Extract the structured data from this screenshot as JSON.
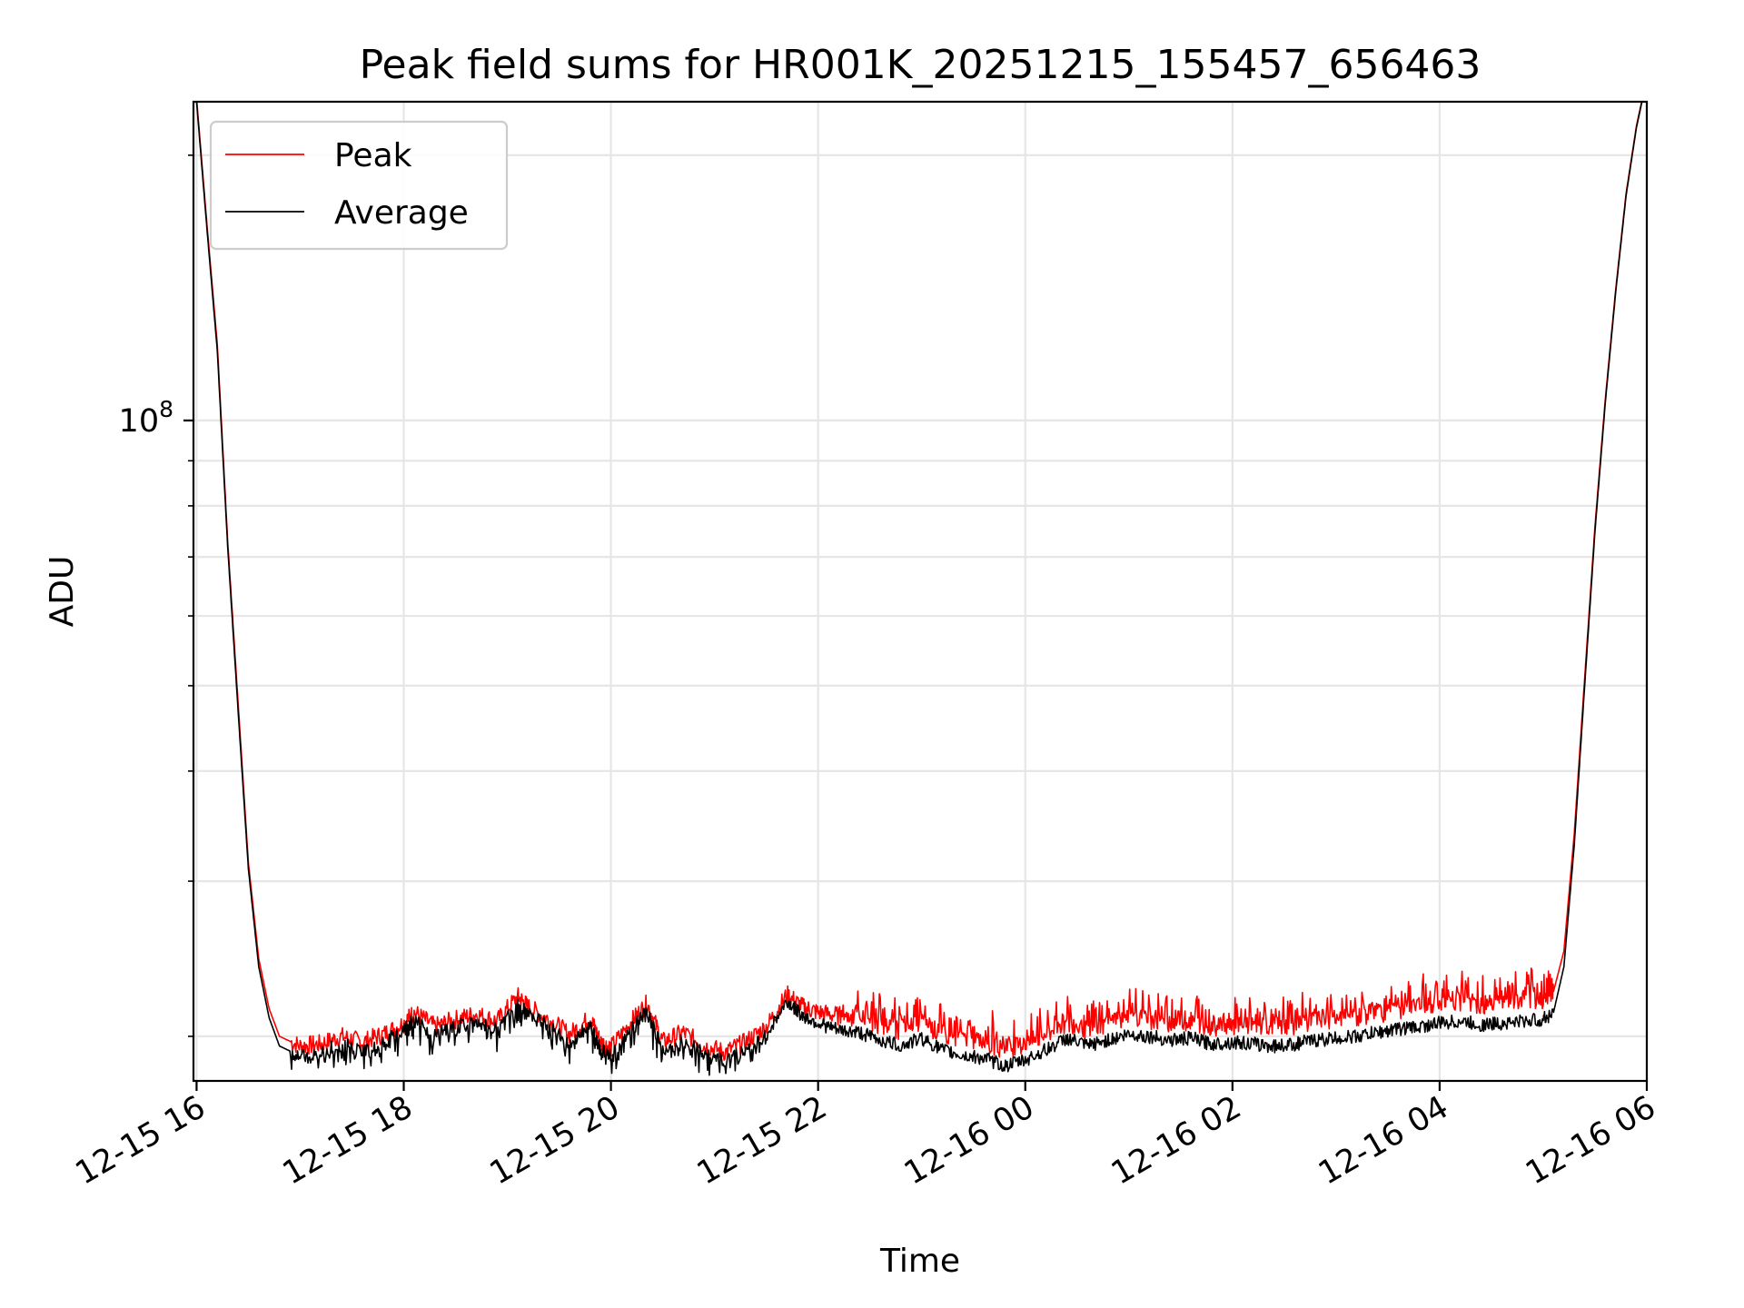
{
  "chart_data": {
    "type": "line",
    "title": "Peak field sums for HR001K_20251215_155457_656463",
    "xlabel": "Time",
    "ylabel": "ADU",
    "yscale": "log",
    "ylim": [
      17800000,
      230000000
    ],
    "xlim_hours": [
      -0.03,
      14.0
    ],
    "x_tick_labels": [
      "12-15 16",
      "12-15 18",
      "12-15 20",
      "12-15 22",
      "12-16 00",
      "12-16 02",
      "12-16 04",
      "12-16 06"
    ],
    "x_tick_hours": [
      0,
      2,
      4,
      6,
      8,
      10,
      12,
      14
    ],
    "y_major_tick": {
      "value": 100000000,
      "base": "10",
      "exponent": "8"
    },
    "y_minor_ticks": [
      20000000,
      30000000,
      40000000,
      50000000,
      60000000,
      70000000,
      80000000,
      90000000,
      200000000
    ],
    "grid": true,
    "legend": {
      "placement": "top-left",
      "entries": [
        {
          "label": "Peak",
          "color": "#ff0000"
        },
        {
          "label": "Average",
          "color": "#000000"
        }
      ]
    },
    "x_unit": "hours after 2025-12-15 16:00",
    "series": [
      {
        "name": "Average",
        "color": "#000000",
        "x": [
          0.0,
          0.1,
          0.2,
          0.3,
          0.4,
          0.5,
          0.6,
          0.7,
          0.8,
          1.0,
          1.2,
          1.4,
          1.6,
          1.8,
          2.0,
          2.1,
          2.3,
          2.5,
          2.7,
          2.9,
          3.1,
          3.2,
          3.4,
          3.6,
          3.8,
          3.9,
          4.0,
          4.2,
          4.35,
          4.5,
          4.7,
          4.9,
          5.1,
          5.3,
          5.5,
          5.7,
          5.85,
          6.0,
          6.2,
          6.4,
          6.6,
          6.8,
          7.0,
          7.2,
          7.4,
          7.6,
          7.8,
          8.0,
          8.2,
          8.4,
          8.6,
          8.8,
          9.0,
          9.2,
          9.4,
          9.6,
          9.8,
          10.0,
          10.2,
          10.4,
          10.6,
          10.8,
          11.0,
          11.2,
          11.4,
          11.6,
          11.8,
          12.0,
          12.2,
          12.4,
          12.6,
          12.8,
          13.0,
          13.1,
          13.2,
          13.3,
          13.4,
          13.5,
          13.6,
          13.7,
          13.8,
          13.9,
          13.97
        ],
        "y": [
          230000000,
          165000000,
          120000000,
          72000000,
          47000000,
          31000000,
          24000000,
          21000000,
          19500000,
          19000000,
          19200000,
          19600000,
          19300000,
          19700000,
          20300000,
          20900000,
          20100000,
          20500000,
          20800000,
          20400000,
          21800000,
          21200000,
          20500000,
          19700000,
          20600000,
          19300000,
          19000000,
          20400000,
          21400000,
          19300000,
          19800000,
          19100000,
          18800000,
          19300000,
          20100000,
          21900000,
          21100000,
          20700000,
          20300000,
          20200000,
          19800000,
          19500000,
          19900000,
          19300000,
          19000000,
          18900000,
          18500000,
          18800000,
          19300000,
          19900000,
          19500000,
          19800000,
          20100000,
          20000000,
          19800000,
          19900000,
          19600000,
          19700000,
          19600000,
          19500000,
          19600000,
          19800000,
          19900000,
          20000000,
          20200000,
          20400000,
          20500000,
          20700000,
          20800000,
          20600000,
          20700000,
          20800000,
          20900000,
          21300000,
          24000000,
          33000000,
          50000000,
          75000000,
          105000000,
          140000000,
          180000000,
          215000000,
          235000000
        ]
      },
      {
        "name": "Peak",
        "color": "#ff0000",
        "x": [
          0.0,
          0.1,
          0.2,
          0.3,
          0.4,
          0.5,
          0.6,
          0.7,
          0.8,
          1.0,
          1.2,
          1.4,
          1.6,
          1.8,
          2.0,
          2.1,
          2.3,
          2.5,
          2.7,
          2.9,
          3.1,
          3.2,
          3.4,
          3.6,
          3.8,
          3.9,
          4.0,
          4.2,
          4.35,
          4.5,
          4.7,
          4.9,
          5.1,
          5.3,
          5.5,
          5.7,
          5.85,
          6.0,
          6.2,
          6.4,
          6.6,
          6.8,
          7.0,
          7.2,
          7.4,
          7.6,
          7.8,
          8.0,
          8.2,
          8.4,
          8.6,
          8.8,
          9.0,
          9.2,
          9.4,
          9.6,
          9.8,
          10.0,
          10.2,
          10.4,
          10.6,
          10.8,
          11.0,
          11.2,
          11.4,
          11.6,
          11.8,
          12.0,
          12.2,
          12.4,
          12.6,
          12.8,
          13.0,
          13.1,
          13.2,
          13.3,
          13.4,
          13.5,
          13.6,
          13.7,
          13.8,
          13.9,
          13.97
        ],
        "y": [
          232000000,
          167000000,
          122000000,
          73000000,
          48000000,
          31500000,
          24500000,
          21500000,
          20000000,
          19500000,
          19600000,
          20000000,
          19700000,
          20100000,
          20700000,
          21300000,
          20500000,
          20900000,
          21200000,
          20800000,
          22200000,
          21600000,
          20900000,
          20100000,
          21000000,
          19700000,
          19400000,
          20800000,
          21800000,
          19700000,
          20200000,
          19500000,
          19200000,
          19700000,
          20500000,
          22300000,
          21600000,
          21300000,
          21100000,
          21000000,
          20600000,
          20300000,
          20700000,
          20100000,
          19800000,
          19700000,
          19300000,
          19600000,
          20100000,
          20700000,
          20300000,
          20700000,
          21000000,
          20900000,
          20700000,
          20800000,
          20500000,
          20600000,
          20500000,
          20500000,
          20600000,
          20800000,
          20900000,
          21000000,
          21200000,
          21400000,
          21600000,
          21800000,
          21900000,
          21700000,
          21800000,
          21900000,
          22000000,
          22500000,
          25000000,
          34000000,
          51000000,
          76000000,
          106000000,
          141000000,
          181000000,
          216000000,
          236000000
        ]
      }
    ]
  }
}
